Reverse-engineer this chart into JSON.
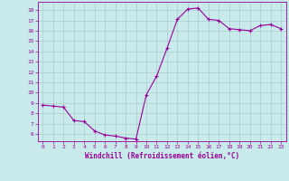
{
  "x": [
    0,
    1,
    2,
    3,
    4,
    5,
    6,
    7,
    8,
    9,
    10,
    11,
    12,
    13,
    14,
    15,
    16,
    17,
    18,
    19,
    20,
    21,
    22,
    23
  ],
  "y": [
    8.8,
    8.7,
    8.6,
    7.3,
    7.2,
    6.3,
    5.9,
    5.8,
    5.6,
    5.5,
    9.8,
    11.6,
    14.3,
    17.1,
    18.1,
    18.2,
    17.1,
    17.0,
    16.2,
    16.1,
    16.0,
    16.5,
    16.6,
    16.2
  ],
  "line_color": "#990099",
  "marker_color": "#990099",
  "bg_color": "#c8eaea",
  "grid_color": "#aacccc",
  "axis_color": "#990099",
  "tick_color": "#990099",
  "xlabel": "Windchill (Refroidissement éolien,°C)",
  "xlabel_color": "#990099",
  "ylabel_ticks": [
    6,
    7,
    8,
    9,
    10,
    11,
    12,
    13,
    14,
    15,
    16,
    17,
    18
  ],
  "ylim": [
    5.3,
    18.8
  ],
  "xlim": [
    -0.5,
    23.5
  ],
  "font_color": "#990099"
}
